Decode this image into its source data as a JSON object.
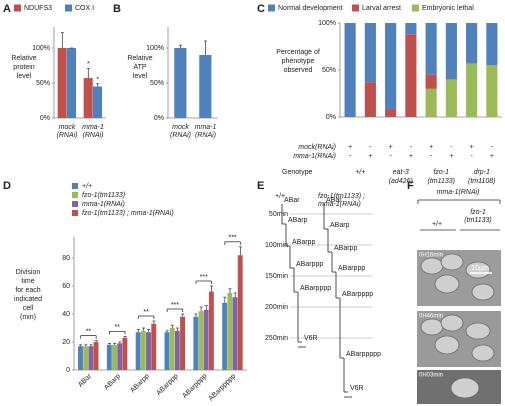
{
  "panel_labels": [
    "A",
    "B",
    "C",
    "D",
    "E",
    "F"
  ],
  "chart_data": [
    {
      "type": "bar",
      "y_label": [
        "Relative",
        "protein",
        "level"
      ],
      "categories": [
        [
          "mock",
          "(RNAi)"
        ],
        [
          "mma-1",
          "(RNAi)"
        ]
      ],
      "series": [
        {
          "name": "NDUFS3",
          "color": "#c0504d",
          "values": [
            100,
            57
          ],
          "errors": [
            22,
            14
          ],
          "significance": [
            null,
            "*"
          ]
        },
        {
          "name": "COX I",
          "color": "#4f81bd",
          "values": [
            100,
            45
          ],
          "errors": [
            0,
            4
          ],
          "significance": [
            null,
            "*"
          ]
        }
      ],
      "ylim": [
        0,
        130
      ],
      "yticks": [
        {
          "value": 0,
          "label": "0%"
        },
        {
          "value": 50,
          "label": "50%"
        },
        {
          "value": 100,
          "label": "100%"
        }
      ]
    },
    {
      "type": "bar",
      "y_label": [
        "Relative",
        "ATP",
        "level"
      ],
      "categories": [
        [
          "mock",
          "(RNAi)"
        ],
        [
          "mma-1",
          "(RNAi)"
        ]
      ],
      "values": [
        100,
        90
      ],
      "errors": [
        4,
        20
      ],
      "color": "#4f81bd",
      "ylim": [
        0,
        130
      ],
      "yticks": [
        {
          "value": 0,
          "label": "0%"
        },
        {
          "value": 50,
          "label": "50%"
        },
        {
          "value": 100,
          "label": "100%"
        }
      ]
    },
    {
      "type": "stacked_bar",
      "y_label": [
        "Percentage of",
        "phenotype",
        "observed"
      ],
      "series": [
        {
          "name": "Normal development",
          "color": "#4f81bd",
          "values": [
            100,
            63,
            92,
            12,
            55,
            60,
            43,
            45
          ]
        },
        {
          "name": "Larval arrest",
          "color": "#c0504d",
          "values": [
            0,
            37,
            8,
            88,
            15,
            0,
            0,
            0
          ]
        },
        {
          "name": "Embryonic lethal",
          "color": "#9bbb59",
          "values": [
            0,
            0,
            0,
            0,
            30,
            40,
            57,
            55
          ]
        }
      ],
      "rows": [
        {
          "name": "mock(RNAi)",
          "values": [
            "+",
            "-",
            "+",
            "-",
            "+",
            "-",
            "+",
            "-"
          ]
        },
        {
          "name": "mma-1(RNAi)",
          "values": [
            "-",
            "+",
            "-",
            "+",
            "-",
            "+",
            "-",
            "+"
          ]
        }
      ],
      "group_label": "Genotype",
      "groups": [
        [
          "+/+"
        ],
        [
          "eat-3",
          "(ad426)"
        ],
        [
          "fzo-1",
          "(tm1133)"
        ],
        [
          "drp-1",
          "(tm1108)"
        ]
      ],
      "ylim": [
        0,
        100
      ],
      "yticks": [
        {
          "value": 0,
          "label": "0%"
        },
        {
          "value": 50,
          "label": "50%"
        },
        {
          "value": 100,
          "label": "100%"
        }
      ]
    },
    {
      "type": "bar",
      "y_label": [
        "Division",
        "time",
        "for each",
        "indicated",
        "cell",
        "(min)"
      ],
      "categories": [
        "ABar",
        "ABarp",
        "ABarpp",
        "ABarppp",
        "ABarpppp",
        "ABarppppp"
      ],
      "series": [
        {
          "name": "+/+",
          "color": "#4f81bd",
          "values": [
            17,
            18,
            27,
            27,
            38,
            48
          ],
          "errors": [
            1,
            1,
            2,
            1,
            2,
            4
          ]
        },
        {
          "name": "fzo-1(tm1133)",
          "color": "#9bbb59",
          "values": [
            17,
            18,
            28,
            30,
            42,
            55
          ],
          "errors": [
            1,
            1,
            2,
            2,
            3,
            3
          ]
        },
        {
          "name": "mma-1(RNAi)",
          "color": "#8064a2",
          "values": [
            17,
            19,
            27,
            28,
            43,
            52
          ],
          "errors": [
            1,
            1,
            2,
            2,
            3,
            3
          ]
        },
        {
          "name": "fzo-1(tm1133) ; mma-1(RNAi)",
          "color": "#c0504d",
          "values": [
            20,
            23,
            33,
            38,
            56,
            82
          ],
          "errors": [
            1,
            1,
            2,
            2,
            4,
            6
          ]
        }
      ],
      "significance": [
        "**",
        "**",
        "**",
        "***",
        "***",
        "***"
      ],
      "ylim": [
        0,
        95
      ],
      "yticks": [
        0,
        20,
        40,
        60,
        80
      ]
    }
  ],
  "lineage": {
    "columns": [
      [
        "+/+"
      ],
      [
        "fzo-1(tm1133) ;",
        "mma-1(RNAi)"
      ]
    ],
    "times": [
      "50min",
      "100min",
      "150min",
      "200min",
      "250min"
    ],
    "cells": [
      [
        "ABar",
        "ABarp",
        "ABarpp",
        "ABarppp",
        "ABarpppp",
        "V6R"
      ],
      [
        "ABar",
        "ABarp",
        "ABarpp",
        "ABarppp",
        "ABarpppp",
        "ABarppppp",
        "V6R"
      ]
    ]
  },
  "micrographs": {
    "title": "mma-1(RNAi)",
    "columns": [
      [
        "+/+"
      ],
      [
        "fzo-1",
        "(tm1133)"
      ]
    ],
    "timestamps": [
      "0H16min",
      "0H46min",
      "0H03min"
    ],
    "scale": "10μm"
  }
}
